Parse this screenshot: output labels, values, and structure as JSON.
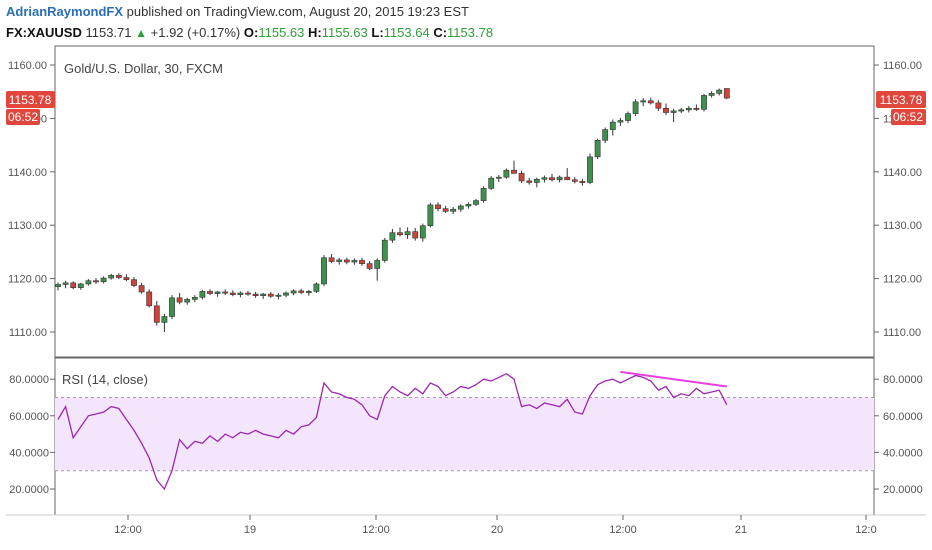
{
  "header": {
    "author": "AdrianRaymondFX",
    "published_text": "published on TradingView.com, August 20, 2015 19:23 EST"
  },
  "ohlc": {
    "symbol": "FX:XAUUSD",
    "price": "1153.71",
    "up_arrow": "▲",
    "change": "+1.92 (+0.17%)",
    "o_label": "O:",
    "o_value": "1155.63",
    "h_label": "H:",
    "h_value": "1155.63",
    "l_label": "L:",
    "l_value": "1153.64",
    "c_label": "C:",
    "c_value": "1153.78"
  },
  "main_pane": {
    "title": "Gold/U.S. Dollar, 30, FXCM",
    "price_badge": "1153.78",
    "time_badge": "06:52",
    "badge_color": "#e0463c"
  },
  "rsi_pane": {
    "title": "RSI (14, close)",
    "line_color": "#9c27b0",
    "band_color": "#f3e5fc",
    "trendline_color": "#e83ee0"
  },
  "colors": {
    "up": "#3f8f4f",
    "down": "#d0433a"
  },
  "chart_data": [
    {
      "type": "candlestick",
      "title": "Gold/U.S. Dollar, 30, FXCM",
      "y_ticks": [
        "1110.00",
        "1120.00",
        "1130.00",
        "1140.00",
        "1150.00",
        "1160.00"
      ],
      "ylim": [
        1105,
        1162
      ],
      "x_ticks": [
        "12:00",
        "19",
        "12:00",
        "20",
        "12:00",
        "21",
        "12:0"
      ],
      "series": [
        {
          "name": "XAUUSD",
          "ohlc": [
            [
              1118.5,
              1119.3,
              1117.8,
              1118.9
            ],
            [
              1118.9,
              1119.6,
              1118.2,
              1119.2
            ],
            [
              1119.2,
              1119.5,
              1118.0,
              1118.3
            ],
            [
              1118.3,
              1119.2,
              1117.9,
              1119.0
            ],
            [
              1119.0,
              1119.9,
              1118.7,
              1119.6
            ],
            [
              1119.6,
              1120.1,
              1119.0,
              1119.4
            ],
            [
              1119.4,
              1120.4,
              1119.1,
              1120.1
            ],
            [
              1120.1,
              1120.9,
              1119.8,
              1120.6
            ],
            [
              1120.6,
              1121.0,
              1119.9,
              1120.2
            ],
            [
              1120.2,
              1120.8,
              1119.5,
              1119.8
            ],
            [
              1119.8,
              1120.3,
              1118.4,
              1118.7
            ],
            [
              1118.7,
              1119.2,
              1117.2,
              1117.5
            ],
            [
              1117.5,
              1118.0,
              1114.6,
              1114.9
            ],
            [
              1114.9,
              1115.8,
              1111.2,
              1111.8
            ],
            [
              1111.8,
              1113.4,
              1110.0,
              1112.9
            ],
            [
              1112.9,
              1116.9,
              1112.4,
              1116.4
            ],
            [
              1116.4,
              1117.3,
              1115.2,
              1115.6
            ],
            [
              1115.6,
              1116.4,
              1115.1,
              1116.1
            ],
            [
              1116.1,
              1116.9,
              1115.6,
              1116.5
            ],
            [
              1116.5,
              1117.9,
              1116.1,
              1117.6
            ],
            [
              1117.6,
              1118.0,
              1116.9,
              1117.2
            ],
            [
              1117.2,
              1117.7,
              1116.6,
              1117.5
            ],
            [
              1117.5,
              1118.0,
              1116.9,
              1117.3
            ],
            [
              1117.3,
              1117.8,
              1116.7,
              1117.0
            ],
            [
              1117.0,
              1117.6,
              1116.5,
              1117.3
            ],
            [
              1117.3,
              1117.7,
              1116.8,
              1117.1
            ],
            [
              1117.1,
              1117.5,
              1116.4,
              1116.8
            ],
            [
              1116.8,
              1117.3,
              1116.2,
              1117.1
            ],
            [
              1117.1,
              1117.5,
              1116.4,
              1116.7
            ],
            [
              1116.7,
              1117.3,
              1116.1,
              1116.9
            ],
            [
              1116.9,
              1117.6,
              1116.5,
              1117.3
            ],
            [
              1117.3,
              1118.0,
              1116.9,
              1117.7
            ],
            [
              1117.7,
              1118.1,
              1117.1,
              1117.4
            ],
            [
              1117.4,
              1117.9,
              1116.8,
              1117.6
            ],
            [
              1117.6,
              1119.3,
              1117.3,
              1119.0
            ],
            [
              1119.0,
              1124.4,
              1118.6,
              1123.9
            ],
            [
              1123.9,
              1124.6,
              1122.9,
              1123.2
            ],
            [
              1123.2,
              1123.9,
              1122.6,
              1123.5
            ],
            [
              1123.5,
              1123.9,
              1122.7,
              1123.1
            ],
            [
              1123.1,
              1123.8,
              1122.6,
              1123.4
            ],
            [
              1123.4,
              1123.9,
              1122.4,
              1122.8
            ],
            [
              1122.8,
              1123.3,
              1121.6,
              1121.9
            ],
            [
              1121.9,
              1123.8,
              1119.6,
              1123.4
            ],
            [
              1123.4,
              1127.6,
              1123.0,
              1127.2
            ],
            [
              1127.2,
              1129.3,
              1126.7,
              1128.6
            ],
            [
              1128.6,
              1129.6,
              1127.9,
              1128.2
            ],
            [
              1128.2,
              1129.6,
              1127.4,
              1128.8
            ],
            [
              1128.8,
              1129.5,
              1127.1,
              1127.6
            ],
            [
              1127.6,
              1130.3,
              1126.9,
              1129.9
            ],
            [
              1129.9,
              1134.2,
              1129.6,
              1133.8
            ],
            [
              1133.8,
              1134.3,
              1132.6,
              1133.1
            ],
            [
              1133.1,
              1133.6,
              1132.3,
              1132.6
            ],
            [
              1132.6,
              1133.4,
              1132.1,
              1133.0
            ],
            [
              1133.0,
              1133.9,
              1132.5,
              1133.6
            ],
            [
              1133.6,
              1134.3,
              1133.1,
              1133.9
            ],
            [
              1133.9,
              1134.9,
              1133.6,
              1134.6
            ],
            [
              1134.6,
              1137.3,
              1134.2,
              1136.9
            ],
            [
              1136.9,
              1139.2,
              1136.6,
              1138.8
            ],
            [
              1138.8,
              1139.4,
              1138.1,
              1139.0
            ],
            [
              1139.0,
              1140.6,
              1138.7,
              1140.3
            ],
            [
              1140.3,
              1142.1,
              1139.7,
              1139.7
            ],
            [
              1139.7,
              1140.2,
              1137.9,
              1138.3
            ],
            [
              1138.3,
              1138.9,
              1137.6,
              1138.0
            ],
            [
              1138.0,
              1138.9,
              1137.1,
              1138.6
            ],
            [
              1138.6,
              1139.3,
              1138.0,
              1138.9
            ],
            [
              1138.9,
              1139.6,
              1138.2,
              1138.5
            ],
            [
              1138.5,
              1139.3,
              1138.0,
              1139.0
            ],
            [
              1139.0,
              1140.7,
              1138.5,
              1138.5
            ],
            [
              1138.5,
              1139.0,
              1137.8,
              1138.2
            ],
            [
              1138.2,
              1138.7,
              1137.4,
              1138.0
            ],
            [
              1138.0,
              1143.4,
              1137.7,
              1142.8
            ],
            [
              1142.8,
              1146.2,
              1142.4,
              1145.9
            ],
            [
              1145.9,
              1148.3,
              1145.4,
              1147.9
            ],
            [
              1147.9,
              1149.8,
              1146.8,
              1149.3
            ],
            [
              1149.3,
              1150.1,
              1148.6,
              1149.6
            ],
            [
              1149.6,
              1151.3,
              1149.1,
              1150.9
            ],
            [
              1150.9,
              1153.6,
              1150.4,
              1153.1
            ],
            [
              1153.1,
              1153.8,
              1152.3,
              1153.3
            ],
            [
              1153.3,
              1153.9,
              1152.6,
              1152.9
            ],
            [
              1152.9,
              1153.4,
              1151.4,
              1151.9
            ],
            [
              1151.9,
              1152.8,
              1150.6,
              1151.1
            ],
            [
              1151.1,
              1151.8,
              1149.3,
              1151.4
            ],
            [
              1151.4,
              1152.0,
              1151.0,
              1151.6
            ],
            [
              1151.6,
              1152.3,
              1151.1,
              1151.9
            ],
            [
              1151.9,
              1152.6,
              1151.4,
              1151.7
            ],
            [
              1151.7,
              1154.6,
              1151.3,
              1154.3
            ],
            [
              1154.3,
              1155.1,
              1153.9,
              1154.7
            ],
            [
              1154.7,
              1155.6,
              1154.3,
              1155.3
            ],
            [
              1155.6,
              1155.6,
              1153.6,
              1153.8
            ]
          ]
        }
      ]
    },
    {
      "type": "line",
      "title": "RSI (14, close)",
      "y_ticks": [
        "20.0000",
        "40.0000",
        "60.0000",
        "80.0000"
      ],
      "ylim": [
        12,
        88
      ],
      "bands": [
        30,
        70
      ],
      "series": [
        {
          "name": "RSI",
          "values": [
            58,
            65,
            48,
            54,
            60,
            61,
            62,
            65,
            64,
            58,
            52,
            45,
            37,
            25,
            20,
            30,
            47,
            42,
            46,
            45,
            49,
            46,
            50,
            48,
            51,
            50,
            52,
            50,
            49,
            48,
            52,
            50,
            54,
            55,
            59,
            78,
            73,
            72,
            70,
            69,
            66,
            60,
            58,
            71,
            76,
            73,
            71,
            75,
            72,
            78,
            76,
            71,
            73,
            76,
            75,
            77,
            80,
            79,
            81,
            83,
            80,
            65,
            66,
            64,
            67,
            66,
            65,
            69,
            62,
            61,
            71,
            77,
            79,
            80,
            78,
            80,
            82,
            81,
            79,
            74,
            76,
            70,
            72,
            71,
            75,
            72,
            73,
            74,
            66
          ]
        },
        {
          "name": "trendline",
          "points": [
            [
              74,
              84
            ],
            [
              88,
              76
            ]
          ]
        }
      ]
    }
  ]
}
